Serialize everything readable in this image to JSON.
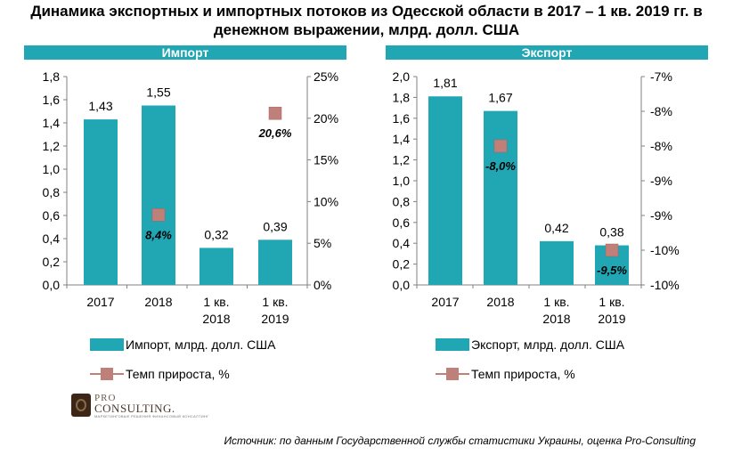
{
  "title": "Динамика экспортных и импортных потоков из Одесской области в 2017 – 1 кв. 2019 гг. в денежном выражении, млрд. долл. США",
  "source": "Источник: по данным Государственной службы статистики Украины, оценка Pro-Consulting",
  "logo": {
    "pro": "PRO",
    "name": "CONSULTING.",
    "tagline": "МАРКЕТИНГОВЫЕ РЕШЕНИЯ ФИНАНСОВЫЙ КОНСАЛТИНГ"
  },
  "colors": {
    "bar": "#21a6b4",
    "marker": "#c0807a",
    "header": "#21a6b4"
  },
  "chart_data": [
    {
      "type": "bar",
      "header": "Импорт",
      "categories": [
        [
          "2017"
        ],
        [
          "2018"
        ],
        [
          "1 кв.",
          "2018"
        ],
        [
          "1 кв.",
          "2019"
        ]
      ],
      "series": [
        {
          "name": "Импорт, млрд. долл. США",
          "type": "bar",
          "axis": "left",
          "values": [
            1.43,
            1.55,
            0.32,
            0.39
          ],
          "labels": [
            "1,43",
            "1,55",
            "0,32",
            "0,39"
          ]
        },
        {
          "name": "Темп прироста, %",
          "type": "scatter",
          "axis": "right",
          "values": [
            null,
            8.4,
            null,
            20.6
          ],
          "labels": [
            null,
            "8,4%",
            null,
            "20,6%"
          ]
        }
      ],
      "y_left": {
        "min": 0,
        "max": 1.8,
        "step": 0.2,
        "ticks": [
          "0,0",
          "0,2",
          "0,4",
          "0,6",
          "0,8",
          "1,0",
          "1,2",
          "1,4",
          "1,6",
          "1,8"
        ]
      },
      "y_right": {
        "min": 0,
        "max": 25,
        "step": 5,
        "ticks": [
          "0%",
          "5%",
          "10%",
          "15%",
          "20%",
          "25%"
        ]
      },
      "legend": "bottom",
      "grid": false
    },
    {
      "type": "bar",
      "header": "Экспорт",
      "categories": [
        [
          "2017"
        ],
        [
          "2018"
        ],
        [
          "1 кв.",
          "2018"
        ],
        [
          "1 кв.",
          "2019"
        ]
      ],
      "series": [
        {
          "name": "Экспорт, млрд. долл. США",
          "type": "bar",
          "axis": "left",
          "values": [
            1.81,
            1.67,
            0.42,
            0.38
          ],
          "labels": [
            "1,81",
            "1,67",
            "0,42",
            "0,38"
          ]
        },
        {
          "name": "Темп прироста, %",
          "type": "scatter",
          "axis": "right",
          "values": [
            null,
            -8.0,
            null,
            -9.5
          ],
          "labels": [
            null,
            "-8,0%",
            null,
            "-9,5%"
          ]
        }
      ],
      "y_left": {
        "min": 0,
        "max": 2.0,
        "step": 0.2,
        "ticks": [
          "0,0",
          "0,2",
          "0,4",
          "0,6",
          "0,8",
          "1,0",
          "1,2",
          "1,4",
          "1,6",
          "1,8",
          "2,0"
        ]
      },
      "y_right": {
        "min": -10,
        "max": -7,
        "step": 0.5,
        "ticks": [
          "-10%",
          "-10%",
          "-9%",
          "-9%",
          "-8%",
          "-8%",
          "-7%"
        ]
      },
      "legend": "bottom",
      "grid": false
    }
  ]
}
